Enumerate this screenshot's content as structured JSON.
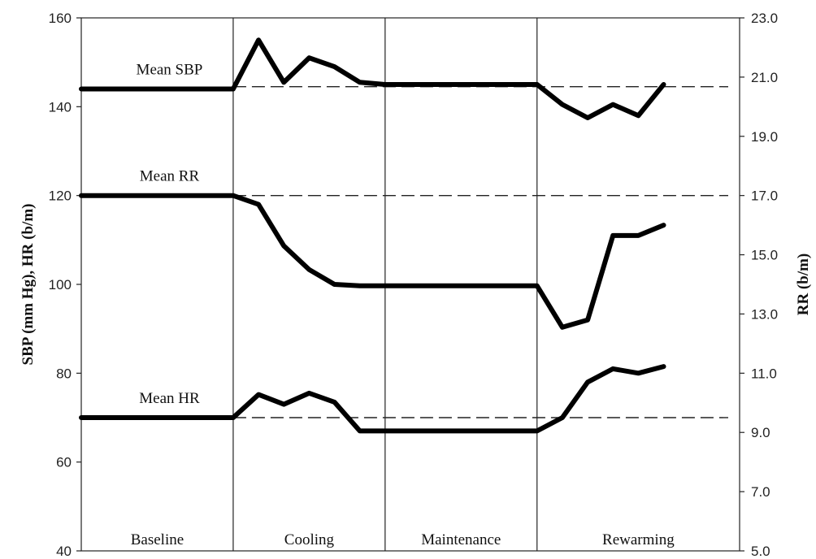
{
  "chart_data": {
    "type": "line",
    "left_axis": {
      "label": "SBP (mm Hg), HR (b/m)",
      "range": [
        40,
        160
      ],
      "ticks": [
        "40",
        "60",
        "80",
        "100",
        "120",
        "140",
        "160"
      ]
    },
    "right_axis": {
      "label": "RR (b/m)",
      "range": [
        5.0,
        23.0
      ],
      "ticks": [
        "5.0",
        "7.0",
        "9.0",
        "11.0",
        "13.0",
        "15.0",
        "17.0",
        "19.0",
        "21.0",
        "23.0"
      ]
    },
    "x_range": [
      0,
      26
    ],
    "phases": [
      {
        "label": "Baseline",
        "start": 0,
        "end": 6
      },
      {
        "label": "Cooling",
        "start": 6,
        "end": 12
      },
      {
        "label": "Maintenance",
        "start": 12,
        "end": 18
      },
      {
        "label": "Rewarming",
        "start": 18,
        "end": 26
      }
    ],
    "series": [
      {
        "name": "Mean SBP",
        "axis": "left",
        "mean": 144.5,
        "x": [
          0,
          6,
          7,
          8,
          9,
          10,
          11,
          12,
          18,
          19,
          20,
          21,
          22,
          23
        ],
        "values": [
          144,
          144,
          155,
          145.5,
          151,
          149,
          145.5,
          145,
          145,
          140.5,
          137.5,
          140.5,
          138,
          145
        ]
      },
      {
        "name": "Mean RR",
        "axis": "right",
        "mean": 17.0,
        "x": [
          0,
          6,
          7,
          8,
          9,
          10,
          11,
          12,
          18,
          19,
          20,
          21,
          22,
          23
        ],
        "values": [
          17.0,
          17.0,
          16.7,
          15.3,
          14.5,
          14.0,
          13.95,
          13.95,
          13.95,
          12.55,
          12.8,
          15.65,
          15.65,
          16.0
        ]
      },
      {
        "name": "Mean HR",
        "axis": "left",
        "mean": 70,
        "x": [
          0,
          6,
          7,
          8,
          9,
          10,
          11,
          12,
          18,
          19,
          20,
          21,
          22,
          23
        ],
        "values": [
          70,
          70,
          75.2,
          73,
          75.5,
          73.5,
          67,
          67,
          67,
          70,
          78,
          81,
          80,
          81.5
        ]
      }
    ]
  }
}
